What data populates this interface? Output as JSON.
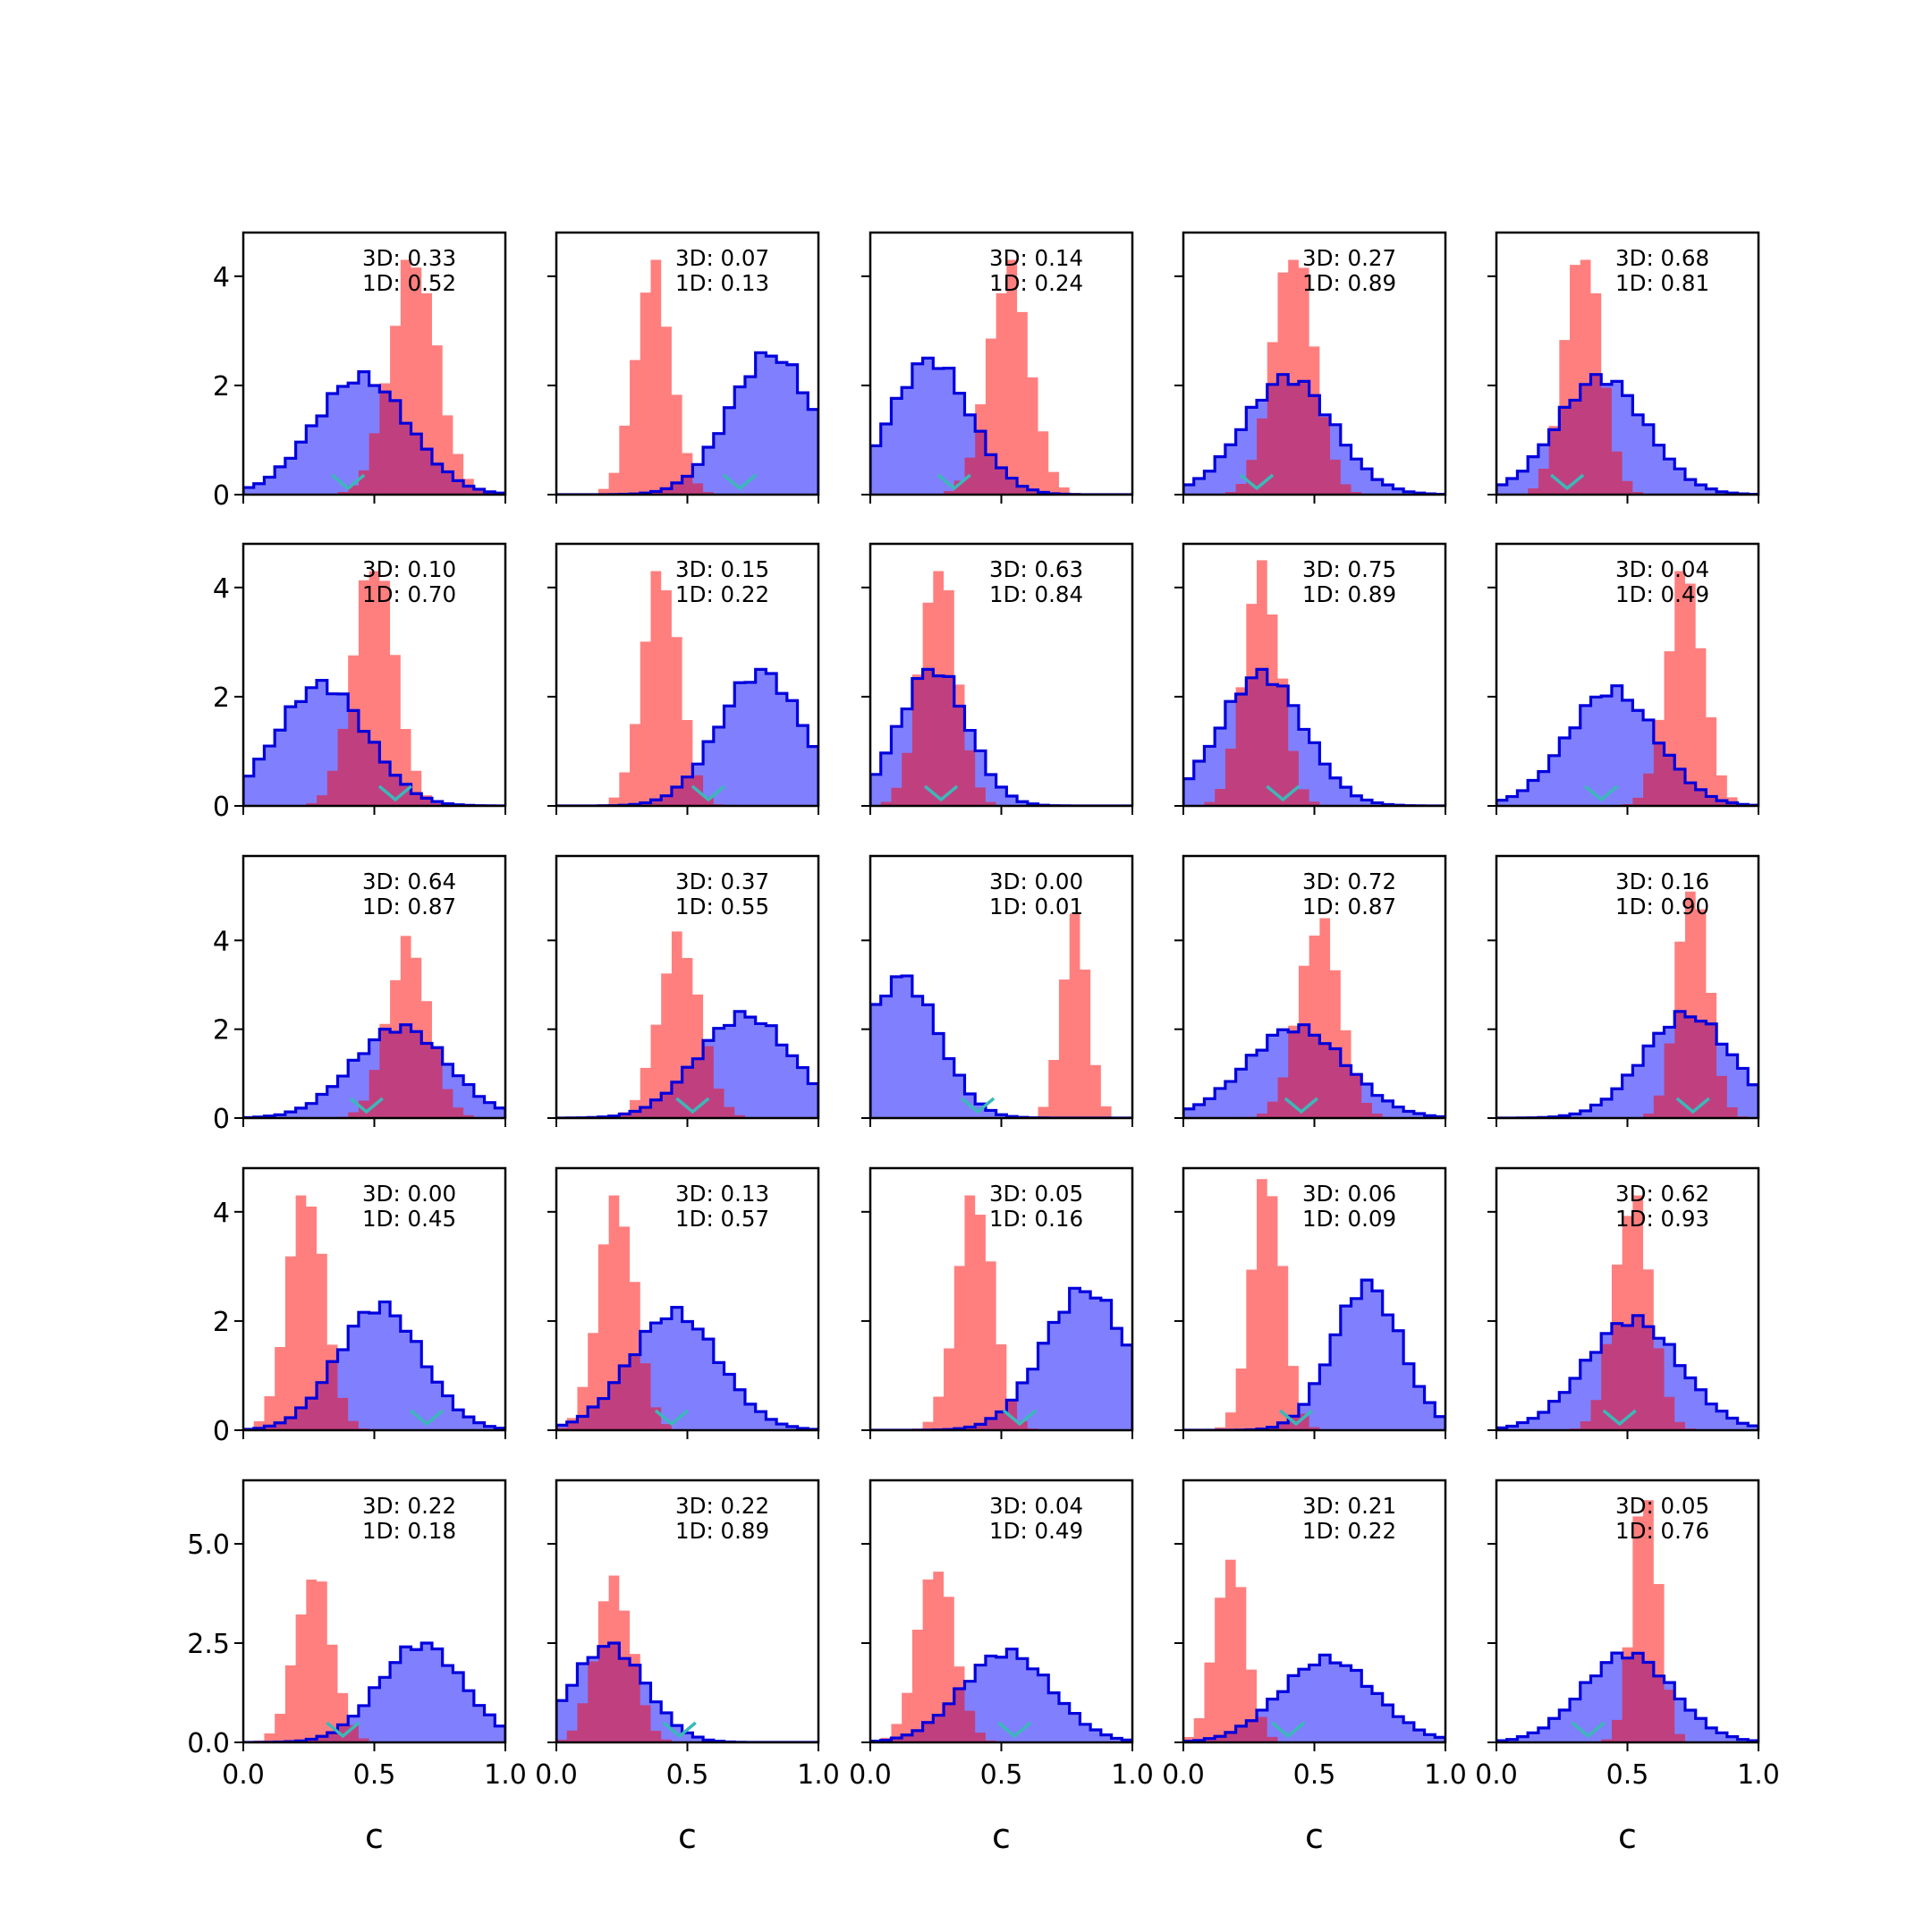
{
  "chart_data": {
    "type": "histogram-grid",
    "rows": 5,
    "cols": 5,
    "xlabel": "c",
    "xlim": [
      0.0,
      1.0
    ],
    "xticks": [
      "0.0",
      "0.5",
      "1.0"
    ],
    "row_ylims": [
      [
        0,
        4.8
      ],
      [
        0,
        4.8
      ],
      [
        0,
        5.9
      ],
      [
        0,
        4.8
      ],
      [
        0,
        6.6
      ]
    ],
    "row_yticks": [
      [
        "0",
        "2",
        "4"
      ],
      [
        "0",
        "2",
        "4"
      ],
      [
        "0",
        "2",
        "4"
      ],
      [
        "0",
        "2",
        "4"
      ],
      [
        "0.0",
        "2.5",
        "5.0"
      ]
    ],
    "colors": {
      "blue_fill": "#8080ff",
      "blue_edge": "#0000dd",
      "red_fill": "#ff8080",
      "marker": "#3bb8b8"
    },
    "panels": [
      {
        "annot": [
          "3D: 0.33",
          "1D: 0.52"
        ],
        "blue": {
          "mean": 0.45,
          "sd": 0.18,
          "peak": 2.25
        },
        "red": {
          "mean": 0.65,
          "sd": 0.09,
          "peak": 4.3
        },
        "marker": 0.4
      },
      {
        "annot": [
          "3D: 0.07",
          "1D: 0.13"
        ],
        "blue": {
          "mean": 0.82,
          "sd": 0.16,
          "peak": 2.6
        },
        "red": {
          "mean": 0.37,
          "sd": 0.07,
          "peak": 4.3
        },
        "marker": 0.7
      },
      {
        "annot": [
          "3D: 0.14",
          "1D: 0.24"
        ],
        "blue": {
          "mean": 0.23,
          "sd": 0.15,
          "peak": 2.5
        },
        "red": {
          "mean": 0.53,
          "sd": 0.08,
          "peak": 4.3
        },
        "marker": 0.32
      },
      {
        "annot": [
          "3D: 0.27",
          "1D: 0.89"
        ],
        "blue": {
          "mean": 0.4,
          "sd": 0.17,
          "peak": 2.2
        },
        "red": {
          "mean": 0.42,
          "sd": 0.08,
          "peak": 4.3
        },
        "marker": 0.28
      },
      {
        "annot": [
          "3D: 0.68",
          "1D: 0.81"
        ],
        "blue": {
          "mean": 0.4,
          "sd": 0.17,
          "peak": 2.2
        },
        "red": {
          "mean": 0.33,
          "sd": 0.07,
          "peak": 4.3
        },
        "marker": 0.27
      },
      {
        "annot": [
          "3D: 0.10",
          "1D: 0.70"
        ],
        "blue": {
          "mean": 0.3,
          "sd": 0.17,
          "peak": 2.3
        },
        "red": {
          "mean": 0.5,
          "sd": 0.08,
          "peak": 4.3
        },
        "marker": 0.58
      },
      {
        "annot": [
          "3D: 0.15",
          "1D: 0.22"
        ],
        "blue": {
          "mean": 0.78,
          "sd": 0.16,
          "peak": 2.5
        },
        "red": {
          "mean": 0.4,
          "sd": 0.07,
          "peak": 4.3
        },
        "marker": 0.58
      },
      {
        "annot": [
          "3D: 0.63",
          "1D: 0.84"
        ],
        "blue": {
          "mean": 0.24,
          "sd": 0.13,
          "peak": 2.5
        },
        "red": {
          "mean": 0.26,
          "sd": 0.07,
          "peak": 4.3
        },
        "marker": 0.27
      },
      {
        "annot": [
          "3D: 0.75",
          "1D: 0.89"
        ],
        "blue": {
          "mean": 0.3,
          "sd": 0.16,
          "peak": 2.5
        },
        "red": {
          "mean": 0.3,
          "sd": 0.07,
          "peak": 4.5
        },
        "marker": 0.38
      },
      {
        "annot": [
          "3D: 0.04",
          "1D: 0.49"
        ],
        "blue": {
          "mean": 0.44,
          "sd": 0.17,
          "peak": 2.2
        },
        "red": {
          "mean": 0.72,
          "sd": 0.07,
          "peak": 4.3
        },
        "marker": 0.4
      },
      {
        "annot": [
          "3D: 0.64",
          "1D: 0.87"
        ],
        "blue": {
          "mean": 0.6,
          "sd": 0.18,
          "peak": 2.1
        },
        "red": {
          "mean": 0.63,
          "sd": 0.08,
          "peak": 4.1
        },
        "marker": 0.47
      },
      {
        "annot": [
          "3D: 0.37",
          "1D: 0.55"
        ],
        "blue": {
          "mean": 0.72,
          "sd": 0.18,
          "peak": 2.4
        },
        "red": {
          "mean": 0.47,
          "sd": 0.08,
          "peak": 4.2
        },
        "marker": 0.52
      },
      {
        "annot": [
          "3D: 0.00",
          "1D: 0.01"
        ],
        "blue": {
          "mean": 0.12,
          "sd": 0.14,
          "peak": 3.2
        },
        "red": {
          "mean": 0.78,
          "sd": 0.05,
          "peak": 4.6
        },
        "marker": 0.41
      },
      {
        "annot": [
          "3D: 0.72",
          "1D: 0.87"
        ],
        "blue": {
          "mean": 0.43,
          "sd": 0.19,
          "peak": 2.1
        },
        "red": {
          "mean": 0.52,
          "sd": 0.08,
          "peak": 4.5
        },
        "marker": 0.45
      },
      {
        "annot": [
          "3D: 0.16",
          "1D: 0.90"
        ],
        "blue": {
          "mean": 0.73,
          "sd": 0.17,
          "peak": 2.4
        },
        "red": {
          "mean": 0.75,
          "sd": 0.06,
          "peak": 5.1
        },
        "marker": 0.75
      },
      {
        "annot": [
          "3D: 0.00",
          "1D: 0.45"
        ],
        "blue": {
          "mean": 0.52,
          "sd": 0.16,
          "peak": 2.35
        },
        "red": {
          "mean": 0.24,
          "sd": 0.07,
          "peak": 4.3
        },
        "marker": 0.7
      },
      {
        "annot": [
          "3D: 0.13",
          "1D: 0.57"
        ],
        "blue": {
          "mean": 0.45,
          "sd": 0.17,
          "peak": 2.25
        },
        "red": {
          "mean": 0.23,
          "sd": 0.07,
          "peak": 4.3
        },
        "marker": 0.44
      },
      {
        "annot": [
          "3D: 0.05",
          "1D: 0.16"
        ],
        "blue": {
          "mean": 0.82,
          "sd": 0.16,
          "peak": 2.6
        },
        "red": {
          "mean": 0.4,
          "sd": 0.07,
          "peak": 4.3
        },
        "marker": 0.57
      },
      {
        "annot": [
          "3D: 0.06",
          "1D: 0.09"
        ],
        "blue": {
          "mean": 0.7,
          "sd": 0.13,
          "peak": 2.75
        },
        "red": {
          "mean": 0.32,
          "sd": 0.06,
          "peak": 4.6
        },
        "marker": 0.43
      },
      {
        "annot": [
          "3D: 0.62",
          "1D: 0.93"
        ],
        "blue": {
          "mean": 0.52,
          "sd": 0.18,
          "peak": 2.1
        },
        "red": {
          "mean": 0.52,
          "sd": 0.07,
          "peak": 4.3
        },
        "marker": 0.47
      },
      {
        "annot": [
          "3D: 0.22",
          "1D: 0.18"
        ],
        "blue": {
          "mean": 0.68,
          "sd": 0.16,
          "peak": 2.5
        },
        "red": {
          "mean": 0.27,
          "sd": 0.07,
          "peak": 4.1
        },
        "marker": 0.38
      },
      {
        "annot": [
          "3D: 0.22",
          "1D: 0.89"
        ],
        "blue": {
          "mean": 0.2,
          "sd": 0.14,
          "peak": 2.5
        },
        "red": {
          "mean": 0.22,
          "sd": 0.07,
          "peak": 4.2
        },
        "marker": 0.47
      },
      {
        "annot": [
          "3D: 0.04",
          "1D: 0.49"
        ],
        "blue": {
          "mean": 0.52,
          "sd": 0.17,
          "peak": 2.35
        },
        "red": {
          "mean": 0.25,
          "sd": 0.07,
          "peak": 4.3
        },
        "marker": 0.55
      },
      {
        "annot": [
          "3D: 0.21",
          "1D: 0.22"
        ],
        "blue": {
          "mean": 0.55,
          "sd": 0.18,
          "peak": 2.2
        },
        "red": {
          "mean": 0.18,
          "sd": 0.06,
          "peak": 4.6
        },
        "marker": 0.4
      },
      {
        "annot": [
          "3D: 0.05",
          "1D: 0.76"
        ],
        "blue": {
          "mean": 0.5,
          "sd": 0.17,
          "peak": 2.25
        },
        "red": {
          "mean": 0.57,
          "sd": 0.05,
          "peak": 6.1
        },
        "marker": 0.35
      }
    ]
  }
}
